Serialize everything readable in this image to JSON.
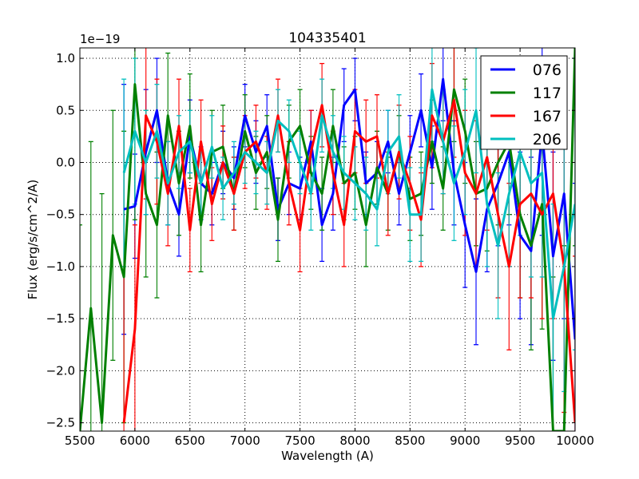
{
  "chart_data": {
    "type": "line",
    "title": "104335401",
    "xlabel": "Wavelength (A)",
    "ylabel": "Flux (erg/s/cm^2/A)",
    "y_offset_label": "1e−19",
    "xlim": [
      5500,
      10000
    ],
    "ylim": [
      -2.58,
      1.1
    ],
    "grid": true,
    "legend_position": "top-right",
    "xticks": [
      "5500",
      "6000",
      "6500",
      "7000",
      "7500",
      "8000",
      "8500",
      "9000",
      "9500",
      "10000"
    ],
    "xtick_values": [
      5500,
      6000,
      6500,
      7000,
      7500,
      8000,
      8500,
      9000,
      9500,
      10000
    ],
    "yticks": [
      "−2.5",
      "−2.0",
      "−1.5",
      "−1.0",
      "−0.5",
      "0.0",
      "0.5",
      "1.0"
    ],
    "ytick_values": [
      -2.5,
      -2.0,
      -1.5,
      -1.0,
      -0.5,
      0.0,
      0.5,
      1.0
    ],
    "series": [
      {
        "name": "076",
        "color": "#0000ff",
        "x_start": 5900,
        "x_step": 100,
        "y": [
          -0.45,
          -0.42,
          0.1,
          0.5,
          -0.2,
          -0.5,
          0.25,
          -0.2,
          -0.3,
          0.0,
          -0.15,
          0.45,
          0.1,
          0.35,
          -0.45,
          -0.2,
          -0.25,
          0.2,
          -0.6,
          -0.3,
          0.55,
          0.7,
          -0.2,
          -0.1,
          0.2,
          -0.3,
          0.1,
          0.5,
          -0.05,
          0.8,
          -0.1,
          -0.6,
          -1.05,
          -0.45,
          -0.2,
          0.1,
          -0.7,
          -0.85,
          0.3,
          -0.9,
          -0.3,
          -1.7
        ],
        "err": [
          1.2,
          0.5,
          0.6,
          0.5,
          0.4,
          0.4,
          0.35,
          0.35,
          0.3,
          0.3,
          0.3,
          0.3,
          0.3,
          0.3,
          0.3,
          0.3,
          0.3,
          0.3,
          0.35,
          0.35,
          0.35,
          0.3,
          0.3,
          0.3,
          0.3,
          0.3,
          0.35,
          0.35,
          0.4,
          0.4,
          0.5,
          0.6,
          0.7,
          0.6,
          0.6,
          0.7,
          0.8,
          0.9,
          1.0,
          1.0,
          1.2,
          1.5
        ]
      },
      {
        "name": "117",
        "color": "#008000",
        "x_start": 5500,
        "x_step": 100,
        "y": [
          -2.6,
          -1.4,
          -2.5,
          -0.7,
          -1.1,
          0.75,
          -0.3,
          -0.6,
          0.45,
          -0.2,
          0.35,
          -0.6,
          0.1,
          0.15,
          -0.3,
          0.3,
          -0.1,
          0.1,
          -0.55,
          0.2,
          0.35,
          -0.1,
          -0.3,
          0.35,
          -0.2,
          -0.1,
          -0.6,
          -0.05,
          -0.3,
          0.1,
          -0.35,
          -0.3,
          0.2,
          -0.25,
          0.7,
          0.3,
          -0.3,
          -0.25,
          0.0,
          0.2,
          -0.5,
          -0.8,
          -0.4,
          -2.6,
          -2.6,
          1.2
        ],
        "err": [
          2.0,
          1.6,
          2.2,
          1.2,
          1.4,
          1.3,
          0.8,
          0.7,
          0.6,
          0.5,
          0.5,
          0.45,
          0.4,
          0.4,
          0.35,
          0.35,
          0.35,
          0.35,
          0.4,
          0.35,
          0.35,
          0.35,
          0.35,
          0.35,
          0.35,
          0.35,
          0.4,
          0.35,
          0.35,
          0.35,
          0.4,
          0.4,
          0.4,
          0.4,
          0.5,
          0.5,
          0.5,
          0.6,
          0.6,
          0.7,
          0.8,
          1.0,
          1.2,
          1.5,
          1.8,
          2.0
        ]
      },
      {
        "name": "167",
        "color": "#ff0000",
        "x_start": 5900,
        "x_step": 100,
        "y": [
          -2.5,
          -1.6,
          0.45,
          0.2,
          -0.3,
          0.35,
          -0.65,
          0.2,
          -0.4,
          0.0,
          -0.3,
          0.1,
          0.2,
          -0.1,
          0.45,
          -0.2,
          -0.65,
          0.1,
          0.55,
          -0.1,
          -0.6,
          0.3,
          0.2,
          0.25,
          -0.3,
          0.1,
          -0.2,
          -0.55,
          0.45,
          0.2,
          0.6,
          -0.1,
          -0.3,
          0.05,
          -0.5,
          -1.0,
          -0.4,
          -0.3,
          -0.5,
          -0.3,
          -1.0,
          -2.5
        ],
        "err": [
          1.5,
          1.0,
          0.8,
          0.6,
          0.5,
          0.45,
          0.4,
          0.4,
          0.35,
          0.35,
          0.35,
          0.35,
          0.35,
          0.35,
          0.35,
          0.4,
          0.4,
          0.4,
          0.4,
          0.4,
          0.4,
          0.4,
          0.4,
          0.4,
          0.4,
          0.45,
          0.45,
          0.45,
          0.5,
          0.5,
          0.55,
          0.6,
          0.7,
          0.7,
          0.8,
          0.8,
          0.9,
          1.0,
          1.0,
          1.2,
          1.4,
          1.6
        ]
      },
      {
        "name": "206",
        "color": "#00bfbf",
        "x_start": 5900,
        "x_step": 100,
        "y": [
          -0.1,
          0.3,
          0.0,
          0.3,
          -0.2,
          0.1,
          0.2,
          -0.2,
          0.15,
          -0.25,
          -0.1,
          0.1,
          0.0,
          -0.1,
          0.4,
          0.3,
          0.0,
          -0.3,
          0.45,
          0.1,
          -0.1,
          -0.2,
          -0.3,
          -0.45,
          0.1,
          0.25,
          -0.5,
          -0.5,
          0.7,
          0.2,
          -0.2,
          0.1,
          0.5,
          -0.4,
          -0.8,
          -0.3,
          0.1,
          -0.2,
          -0.1,
          -1.5,
          -1.0,
          -0.4
        ],
        "err": [
          0.9,
          0.7,
          0.5,
          0.45,
          0.4,
          0.35,
          0.3,
          0.3,
          0.3,
          0.3,
          0.3,
          0.3,
          0.3,
          0.3,
          0.3,
          0.3,
          0.3,
          0.35,
          0.35,
          0.35,
          0.35,
          0.35,
          0.35,
          0.35,
          0.4,
          0.4,
          0.45,
          0.45,
          0.5,
          0.5,
          0.55,
          0.6,
          0.6,
          0.6,
          0.7,
          0.7,
          0.8,
          0.9,
          1.0,
          1.1,
          1.2,
          1.4
        ]
      }
    ]
  }
}
